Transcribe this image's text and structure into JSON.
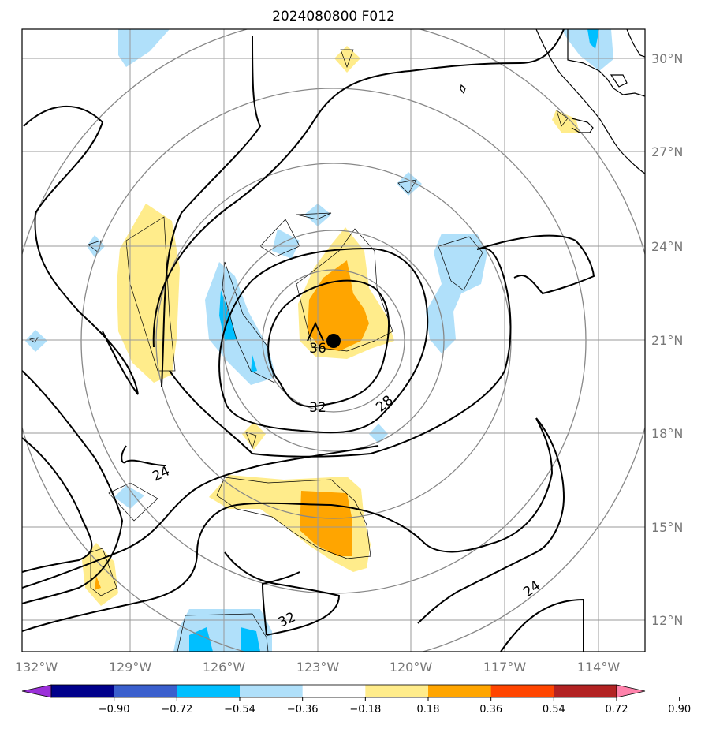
{
  "title": "2024080800 F012",
  "lon_labels": [
    "132°W",
    "129°W",
    "126°W",
    "123°W",
    "120°W",
    "117°W",
    "114°W"
  ],
  "lat_labels": [
    "30°N",
    "27°N",
    "24°N",
    "21°N",
    "18°N",
    "15°N",
    "12°N"
  ],
  "contour_labels": [
    "36",
    "32",
    "28",
    "24",
    "24",
    "32"
  ],
  "colorbar": {
    "ticks": [
      "−0.90",
      "−0.72",
      "−0.54",
      "−0.36",
      "−0.18",
      "0.18",
      "0.36",
      "0.54",
      "0.72",
      "0.90"
    ],
    "colors": [
      "#9b30d9",
      "#00008b",
      "#3a5fcd",
      "#00bfff",
      "#b0e0fa",
      "#ffffff",
      "#ffec8b",
      "#ffa500",
      "#ff4500",
      "#b22222",
      "#ff82ab"
    ]
  },
  "fill_colors": {
    "light_blue": "#b0e0fa",
    "blue": "#00bfff",
    "light_yellow": "#ffec8b",
    "orange": "#ffa500"
  },
  "center_marker": {
    "lon": -122.0,
    "lat": 21.0
  }
}
